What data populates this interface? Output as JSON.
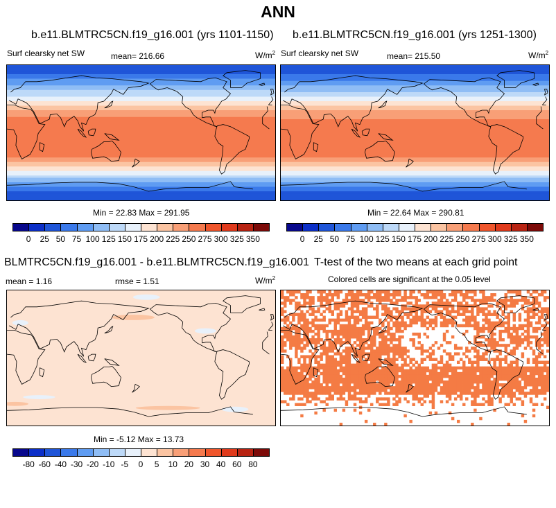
{
  "page_title": "ANN",
  "panels": [
    {
      "case_title": "b.e11.BLMTRC5CN.f19_g16.001 (yrs 1101-1150)",
      "variable": "Surf clearsky net SW",
      "mean_label": "mean= 216.66",
      "units": "W/m",
      "units_sup": "2",
      "min_max": "Min =  22.83 Max = 291.95"
    },
    {
      "case_title": "b.e11.BLMTRC5CN.f19_g16.001 (yrs 1251-1300)",
      "variable": "Surf clearsky net SW",
      "mean_label": "mean= 215.50",
      "units": "W/m",
      "units_sup": "2",
      "min_max": "Min =  22.64 Max = 290.81"
    },
    {
      "diff_title": "BLMTRC5CN.f19_g16.001 - b.e11.BLMTRC5CN.f19_g16.001",
      "mean_label": "mean =   1.16",
      "rmse_label": "rmse =   1.51",
      "units": "W/m",
      "units_sup": "2",
      "min_max": "Min =  -5.12 Max =  13.73"
    },
    {
      "ttest_title": "T-test of the two means at each grid point",
      "ttest_sub": "Colored cells are significant at the 0.05 level"
    }
  ],
  "colors": {
    "abs_scale": [
      "#08088c",
      "#0c2fc8",
      "#1f55d8",
      "#3a79ea",
      "#5f9cf2",
      "#8fbdf5",
      "#bdd9f8",
      "#e8f1fb",
      "#fde3d2",
      "#fbc4a2",
      "#f89f77",
      "#f57a4e",
      "#f0562c",
      "#e03a1c",
      "#b82312",
      "#7c0a08"
    ],
    "diff_scale": [
      "#08088c",
      "#0c2fc8",
      "#1f55d8",
      "#3a79ea",
      "#5f9cf2",
      "#8fbdf5",
      "#bdd9f8",
      "#e8f1fb",
      "#fde3d2",
      "#fbc4a2",
      "#f89f77",
      "#f57a4e",
      "#f0562c",
      "#e03a1c",
      "#b82312",
      "#7c0a08"
    ],
    "significant": "#f47b44",
    "diff_background": "#fde3d2"
  },
  "chart_data": [
    {
      "type": "heatmap",
      "title": "b.e11.BLMTRC5CN.f19_g16.001 (yrs 1101-1150)",
      "variable": "Surf clearsky net SW",
      "units": "W/m2",
      "mean": 216.66,
      "min": 22.83,
      "max": 291.95,
      "colorbar_levels": [
        0,
        25,
        50,
        75,
        100,
        125,
        150,
        175,
        200,
        225,
        250,
        275,
        300,
        325,
        350
      ],
      "colorbar_labels": [
        "0",
        "25",
        "50",
        "75",
        "100",
        "125",
        "150",
        "175",
        "200",
        "225",
        "250",
        "275",
        "300",
        "325",
        "350"
      ],
      "lat_profile": {
        "lat": [
          90,
          75,
          60,
          45,
          30,
          15,
          0,
          -15,
          -30,
          -45,
          -60,
          -75,
          -90
        ],
        "value": [
          25,
          60,
          110,
          165,
          225,
          262,
          272,
          275,
          258,
          205,
          130,
          55,
          25
        ]
      }
    },
    {
      "type": "heatmap",
      "title": "b.e11.BLMTRC5CN.f19_g16.001 (yrs 1251-1300)",
      "variable": "Surf clearsky net SW",
      "units": "W/m2",
      "mean": 215.5,
      "min": 22.64,
      "max": 290.81,
      "colorbar_levels": [
        0,
        25,
        50,
        75,
        100,
        125,
        150,
        175,
        200,
        225,
        250,
        275,
        300,
        325,
        350
      ],
      "colorbar_labels": [
        "0",
        "25",
        "50",
        "75",
        "100",
        "125",
        "150",
        "175",
        "200",
        "225",
        "250",
        "275",
        "300",
        "325",
        "350"
      ],
      "lat_profile": {
        "lat": [
          90,
          75,
          60,
          45,
          30,
          15,
          0,
          -15,
          -30,
          -45,
          -60,
          -75,
          -90
        ],
        "value": [
          25,
          60,
          108,
          163,
          224,
          261,
          271,
          274,
          257,
          204,
          128,
          54,
          25
        ]
      }
    },
    {
      "type": "heatmap",
      "title": "BLMTRC5CN.f19_g16.001 - b.e11.BLMTRC5CN.f19_g16.001",
      "units": "W/m2",
      "mean": 1.16,
      "rmse": 1.51,
      "min": -5.12,
      "max": 13.73,
      "colorbar_levels": [
        -80,
        -60,
        -40,
        -30,
        -20,
        -10,
        -5,
        0,
        5,
        10,
        20,
        30,
        40,
        60,
        80
      ],
      "colorbar_labels": [
        "-80",
        "-60",
        "-40",
        "-30",
        "-20",
        "-10",
        "-5",
        "0",
        "5",
        "10",
        "20",
        "30",
        "40",
        "60",
        "80"
      ]
    },
    {
      "type": "heatmap",
      "title": "T-test of the two means at each grid point",
      "subtitle": "Colored cells are significant at the 0.05 level",
      "significance_level": 0.05
    }
  ]
}
